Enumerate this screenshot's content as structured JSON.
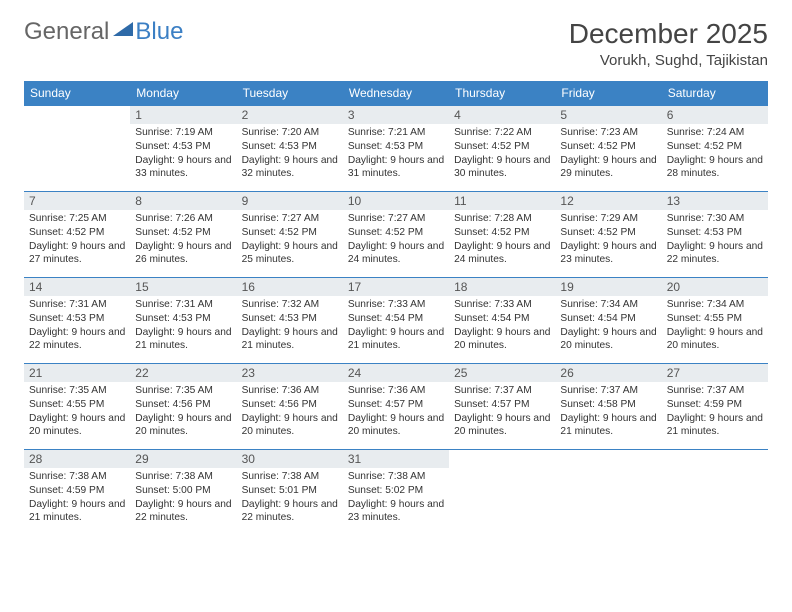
{
  "logo": {
    "part1": "General",
    "part2": "Blue"
  },
  "header": {
    "month_title": "December 2025",
    "location": "Vorukh, Sughd, Tajikistan"
  },
  "colors": {
    "header_bg": "#3b82c4",
    "header_text": "#ffffff",
    "daynum_bg": "#e8ecef",
    "border": "#3b82c4",
    "logo_word2": "#3b7fc4",
    "logo_word1": "#666666"
  },
  "weekdays": [
    "Sunday",
    "Monday",
    "Tuesday",
    "Wednesday",
    "Thursday",
    "Friday",
    "Saturday"
  ],
  "first_weekday_offset": 1,
  "days": [
    {
      "n": 1,
      "sunrise": "7:19 AM",
      "sunset": "4:53 PM",
      "daylight": "9 hours and 33 minutes."
    },
    {
      "n": 2,
      "sunrise": "7:20 AM",
      "sunset": "4:53 PM",
      "daylight": "9 hours and 32 minutes."
    },
    {
      "n": 3,
      "sunrise": "7:21 AM",
      "sunset": "4:53 PM",
      "daylight": "9 hours and 31 minutes."
    },
    {
      "n": 4,
      "sunrise": "7:22 AM",
      "sunset": "4:52 PM",
      "daylight": "9 hours and 30 minutes."
    },
    {
      "n": 5,
      "sunrise": "7:23 AM",
      "sunset": "4:52 PM",
      "daylight": "9 hours and 29 minutes."
    },
    {
      "n": 6,
      "sunrise": "7:24 AM",
      "sunset": "4:52 PM",
      "daylight": "9 hours and 28 minutes."
    },
    {
      "n": 7,
      "sunrise": "7:25 AM",
      "sunset": "4:52 PM",
      "daylight": "9 hours and 27 minutes."
    },
    {
      "n": 8,
      "sunrise": "7:26 AM",
      "sunset": "4:52 PM",
      "daylight": "9 hours and 26 minutes."
    },
    {
      "n": 9,
      "sunrise": "7:27 AM",
      "sunset": "4:52 PM",
      "daylight": "9 hours and 25 minutes."
    },
    {
      "n": 10,
      "sunrise": "7:27 AM",
      "sunset": "4:52 PM",
      "daylight": "9 hours and 24 minutes."
    },
    {
      "n": 11,
      "sunrise": "7:28 AM",
      "sunset": "4:52 PM",
      "daylight": "9 hours and 24 minutes."
    },
    {
      "n": 12,
      "sunrise": "7:29 AM",
      "sunset": "4:52 PM",
      "daylight": "9 hours and 23 minutes."
    },
    {
      "n": 13,
      "sunrise": "7:30 AM",
      "sunset": "4:53 PM",
      "daylight": "9 hours and 22 minutes."
    },
    {
      "n": 14,
      "sunrise": "7:31 AM",
      "sunset": "4:53 PM",
      "daylight": "9 hours and 22 minutes."
    },
    {
      "n": 15,
      "sunrise": "7:31 AM",
      "sunset": "4:53 PM",
      "daylight": "9 hours and 21 minutes."
    },
    {
      "n": 16,
      "sunrise": "7:32 AM",
      "sunset": "4:53 PM",
      "daylight": "9 hours and 21 minutes."
    },
    {
      "n": 17,
      "sunrise": "7:33 AM",
      "sunset": "4:54 PM",
      "daylight": "9 hours and 21 minutes."
    },
    {
      "n": 18,
      "sunrise": "7:33 AM",
      "sunset": "4:54 PM",
      "daylight": "9 hours and 20 minutes."
    },
    {
      "n": 19,
      "sunrise": "7:34 AM",
      "sunset": "4:54 PM",
      "daylight": "9 hours and 20 minutes."
    },
    {
      "n": 20,
      "sunrise": "7:34 AM",
      "sunset": "4:55 PM",
      "daylight": "9 hours and 20 minutes."
    },
    {
      "n": 21,
      "sunrise": "7:35 AM",
      "sunset": "4:55 PM",
      "daylight": "9 hours and 20 minutes."
    },
    {
      "n": 22,
      "sunrise": "7:35 AM",
      "sunset": "4:56 PM",
      "daylight": "9 hours and 20 minutes."
    },
    {
      "n": 23,
      "sunrise": "7:36 AM",
      "sunset": "4:56 PM",
      "daylight": "9 hours and 20 minutes."
    },
    {
      "n": 24,
      "sunrise": "7:36 AM",
      "sunset": "4:57 PM",
      "daylight": "9 hours and 20 minutes."
    },
    {
      "n": 25,
      "sunrise": "7:37 AM",
      "sunset": "4:57 PM",
      "daylight": "9 hours and 20 minutes."
    },
    {
      "n": 26,
      "sunrise": "7:37 AM",
      "sunset": "4:58 PM",
      "daylight": "9 hours and 21 minutes."
    },
    {
      "n": 27,
      "sunrise": "7:37 AM",
      "sunset": "4:59 PM",
      "daylight": "9 hours and 21 minutes."
    },
    {
      "n": 28,
      "sunrise": "7:38 AM",
      "sunset": "4:59 PM",
      "daylight": "9 hours and 21 minutes."
    },
    {
      "n": 29,
      "sunrise": "7:38 AM",
      "sunset": "5:00 PM",
      "daylight": "9 hours and 22 minutes."
    },
    {
      "n": 30,
      "sunrise": "7:38 AM",
      "sunset": "5:01 PM",
      "daylight": "9 hours and 22 minutes."
    },
    {
      "n": 31,
      "sunrise": "7:38 AM",
      "sunset": "5:02 PM",
      "daylight": "9 hours and 23 minutes."
    }
  ],
  "labels": {
    "sunrise": "Sunrise:",
    "sunset": "Sunset:",
    "daylight": "Daylight:"
  }
}
